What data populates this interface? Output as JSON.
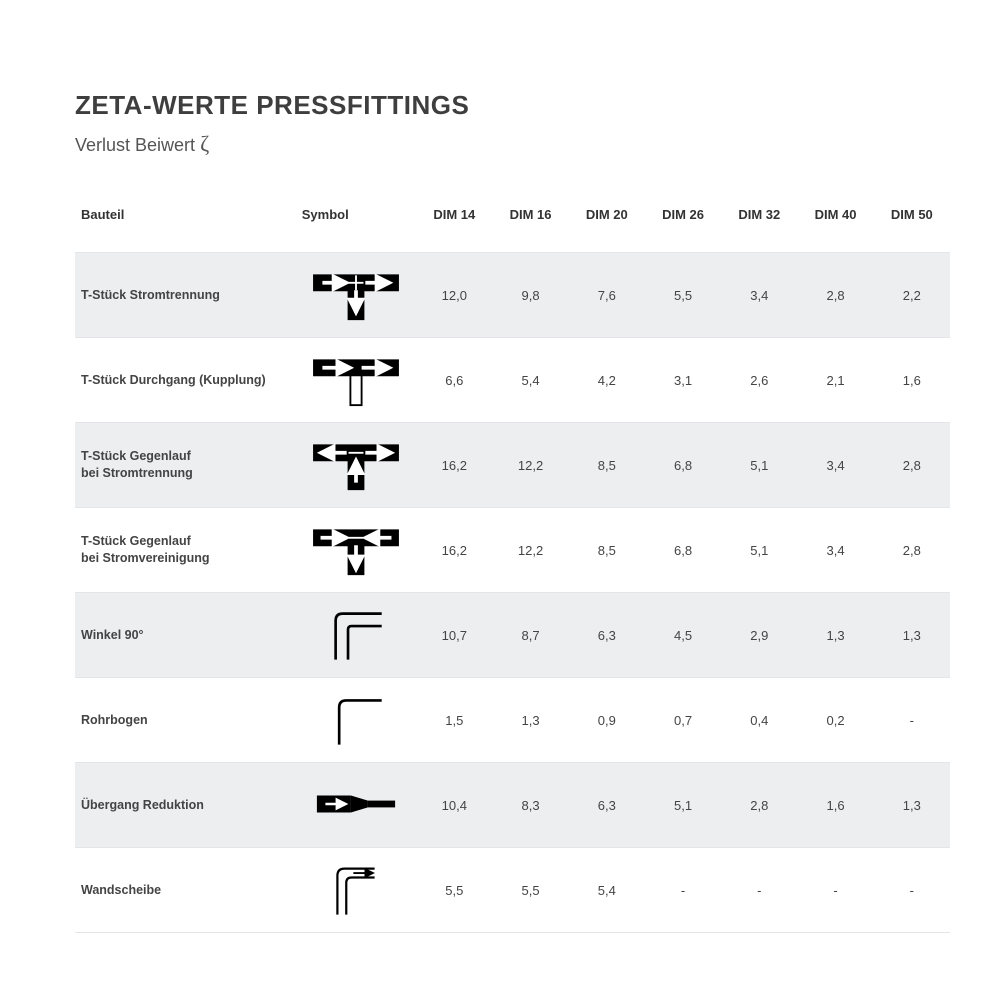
{
  "title": "ZETA-WERTE PRESSFITTINGS",
  "subtitle_prefix": "Verlust Beiwert ",
  "subtitle_symbol": "ζ",
  "colors": {
    "text": "#3a3a3a",
    "shade": "#edeef0",
    "rule": "#e3e5e8",
    "symbol_stroke": "#000000"
  },
  "table": {
    "headers": {
      "label": "Bauteil",
      "symbol": "Symbol",
      "dims": [
        "DIM 14",
        "DIM 16",
        "DIM 20",
        "DIM 26",
        "DIM 32",
        "DIM 40",
        "DIM 50"
      ]
    },
    "rows": [
      {
        "label": "T-Stück Stromtrennung",
        "symbol": "t-split-down",
        "values": [
          "12,0",
          "9,8",
          "7,6",
          "5,5",
          "3,4",
          "2,8",
          "2,2"
        ]
      },
      {
        "label": "T-Stück Durchgang (Kupplung)",
        "symbol": "t-through",
        "values": [
          "6,6",
          "5,4",
          "4,2",
          "3,1",
          "2,6",
          "2,1",
          "1,6"
        ]
      },
      {
        "label": "T-Stück Gegenlauf\nbei Stromtrennung",
        "symbol": "t-counter-sep",
        "values": [
          "16,2",
          "12,2",
          "8,5",
          "6,8",
          "5,1",
          "3,4",
          "2,8"
        ]
      },
      {
        "label": "T-Stück Gegenlauf\nbei Stromvereinigung",
        "symbol": "t-counter-join",
        "values": [
          "16,2",
          "12,2",
          "8,5",
          "6,8",
          "5,1",
          "3,4",
          "2,8"
        ]
      },
      {
        "label": "Winkel 90°",
        "symbol": "elbow-wide",
        "values": [
          "10,7",
          "8,7",
          "6,3",
          "4,5",
          "2,9",
          "1,3",
          "1,3"
        ]
      },
      {
        "label": "Rohrbogen",
        "symbol": "elbow-thin",
        "values": [
          "1,5",
          "1,3",
          "0,9",
          "0,7",
          "0,4",
          "0,2",
          "-"
        ]
      },
      {
        "label": "Übergang Reduktion",
        "symbol": "reducer",
        "values": [
          "10,4",
          "8,3",
          "6,3",
          "5,1",
          "2,8",
          "1,6",
          "1,3"
        ]
      },
      {
        "label": "Wandscheibe",
        "symbol": "wall-outlet",
        "values": [
          "5,5",
          "5,5",
          "5,4",
          "-",
          "-",
          "-",
          "-"
        ]
      }
    ]
  }
}
